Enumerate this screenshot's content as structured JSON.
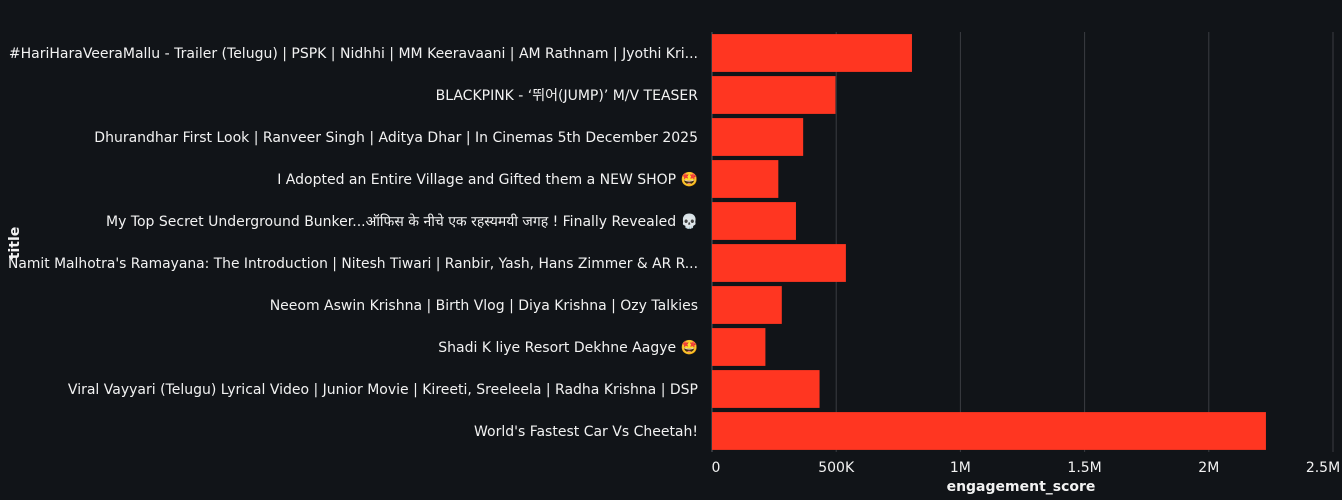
{
  "chart_data": {
    "type": "bar",
    "orientation": "horizontal",
    "xlabel": "engagement_score",
    "ylabel": "title",
    "xlim": [
      0,
      2500000
    ],
    "xticks": [
      {
        "value": 0,
        "label": "0"
      },
      {
        "value": 500000,
        "label": "500K"
      },
      {
        "value": 1000000,
        "label": "1M"
      },
      {
        "value": 1500000,
        "label": "1.5M"
      },
      {
        "value": 2000000,
        "label": "2M"
      },
      {
        "value": 2500000,
        "label": "2.5M"
      }
    ],
    "grid": true,
    "bar_color": "#ff3621",
    "background": "#111418",
    "categories": [
      "#HariHaraVeeraMallu - Trailer (Telugu) | PSPK | Nidhhi | MM Keeravaani | AM Rathnam | Jyothi Kri...",
      "BLACKPINK - ‘뛰어(JUMP)’ M/V TEASER",
      "Dhurandhar First Look | Ranveer Singh | Aditya Dhar | In Cinemas 5th December 2025",
      "I Adopted an Entire Village and Gifted them a NEW SHOP 🤩",
      "My Top Secret Underground Bunker...ऑफिस के नीचे एक रहस्यमयी जगह ! Finally Revealed 💀",
      "Namit Malhotra's Ramayana: The Introduction | Nitesh Tiwari | Ranbir, Yash, Hans Zimmer & AR R...",
      "Neeom Aswin Krishna | Birth Vlog | Diya Krishna | Ozy Talkies",
      "Shadi K liye Resort Dekhne Aagye 🤩",
      "Viral Vayyari (Telugu) Lyrical Video | Junior Movie | Kireeti, Sreeleela | Radha Krishna | DSP",
      "World's Fastest Car Vs Cheetah!"
    ],
    "values": [
      805000,
      497000,
      367000,
      267000,
      338000,
      539000,
      281000,
      215000,
      433000,
      2230000
    ]
  }
}
